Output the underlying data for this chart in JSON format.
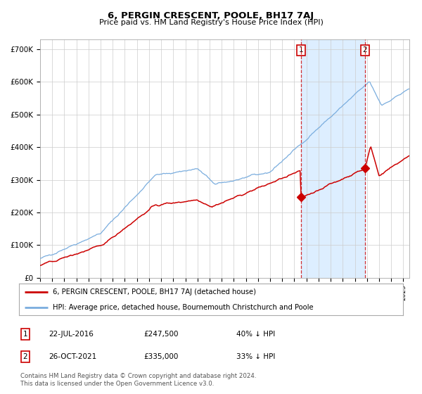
{
  "title": "6, PERGIN CRESCENT, POOLE, BH17 7AJ",
  "subtitle": "Price paid vs. HM Land Registry's House Price Index (HPI)",
  "legend_line1": "6, PERGIN CRESCENT, POOLE, BH17 7AJ (detached house)",
  "legend_line2": "HPI: Average price, detached house, Bournemouth Christchurch and Poole",
  "footnote1": "Contains HM Land Registry data © Crown copyright and database right 2024.",
  "footnote2": "This data is licensed under the Open Government Licence v3.0.",
  "sale1_date": "22-JUL-2016",
  "sale1_price": "£247,500",
  "sale1_hpi": "40% ↓ HPI",
  "sale2_date": "26-OCT-2021",
  "sale2_price": "£335,000",
  "sale2_hpi": "33% ↓ HPI",
  "red_color": "#cc0000",
  "blue_color": "#7aadde",
  "shade_color": "#ddeeff",
  "bg_color": "#ffffff",
  "grid_color": "#cccccc",
  "ylim": [
    0,
    730000
  ],
  "yticks": [
    0,
    100000,
    200000,
    300000,
    400000,
    500000,
    600000,
    700000
  ],
  "ytick_labels": [
    "£0",
    "£100K",
    "£200K",
    "£300K",
    "£400K",
    "£500K",
    "£600K",
    "£700K"
  ],
  "sale1_x": 2016.55,
  "sale1_y": 247500,
  "sale2_x": 2021.82,
  "sale2_y": 335000,
  "xmin": 1995.0,
  "xmax": 2025.5
}
